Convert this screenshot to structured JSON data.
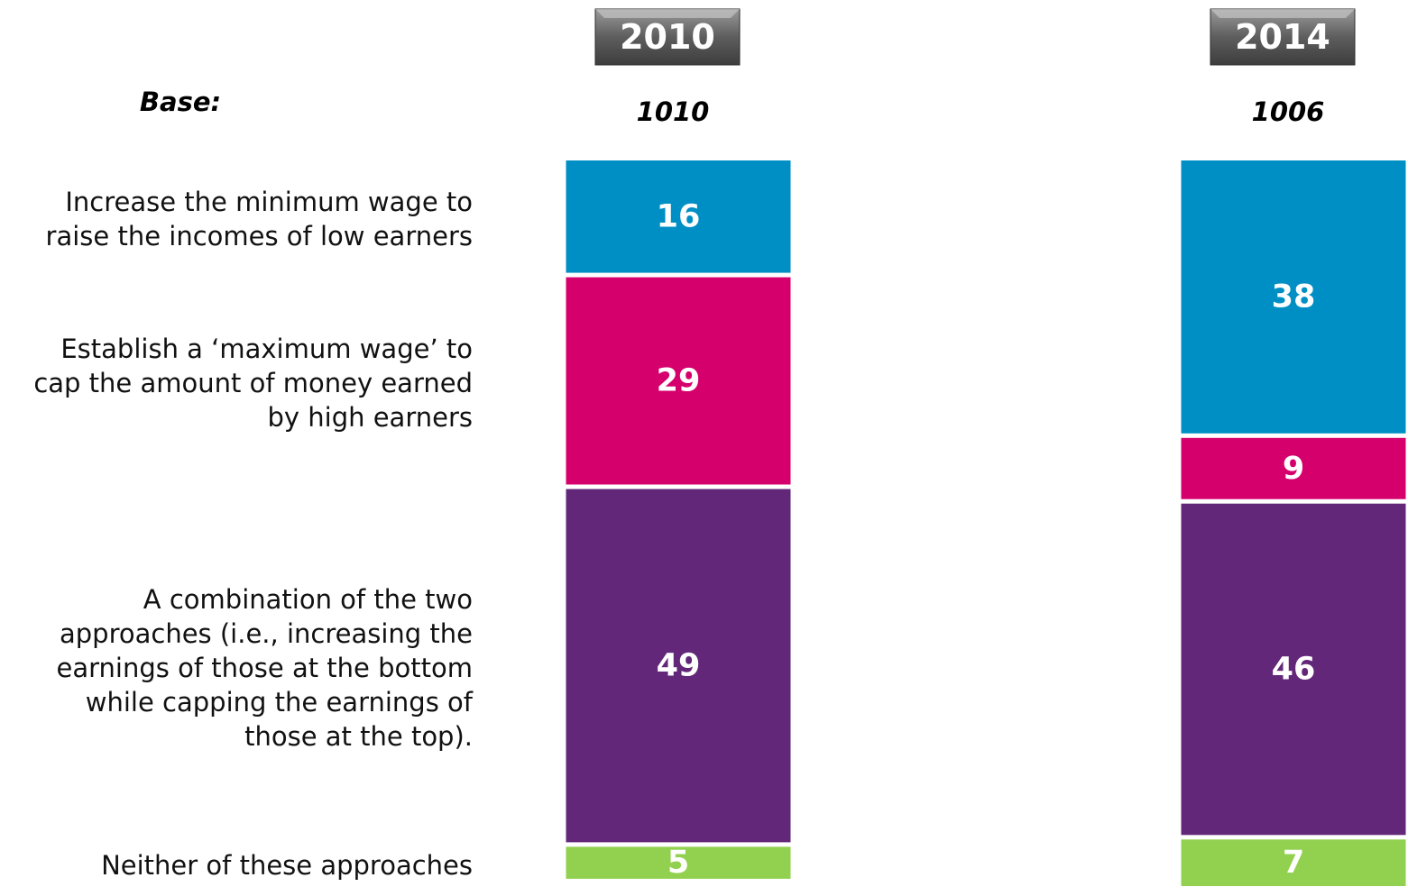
{
  "chart_data": {
    "type": "stacked_bar",
    "categories": [
      "2010",
      "2014"
    ],
    "base": {
      "label": "Base:",
      "values": [
        1010,
        1006
      ]
    },
    "series": [
      {
        "name": "Increase the minimum wage to raise the incomes of low earners",
        "color": "#008fc5",
        "values": [
          16,
          38
        ]
      },
      {
        "name": "Establish a ‘maximum wage’ to cap the amount of money earned by high earners",
        "color": "#d6006d",
        "values": [
          29,
          9
        ]
      },
      {
        "name": "A combination of the two approaches (i.e., increasing the earnings of those at the bottom while capping the earnings of those at the top).",
        "color": "#622778",
        "values": [
          49,
          46
        ]
      },
      {
        "name": "Neither of these approaches",
        "color": "#92d050",
        "values": [
          5,
          7
        ]
      }
    ]
  }
}
